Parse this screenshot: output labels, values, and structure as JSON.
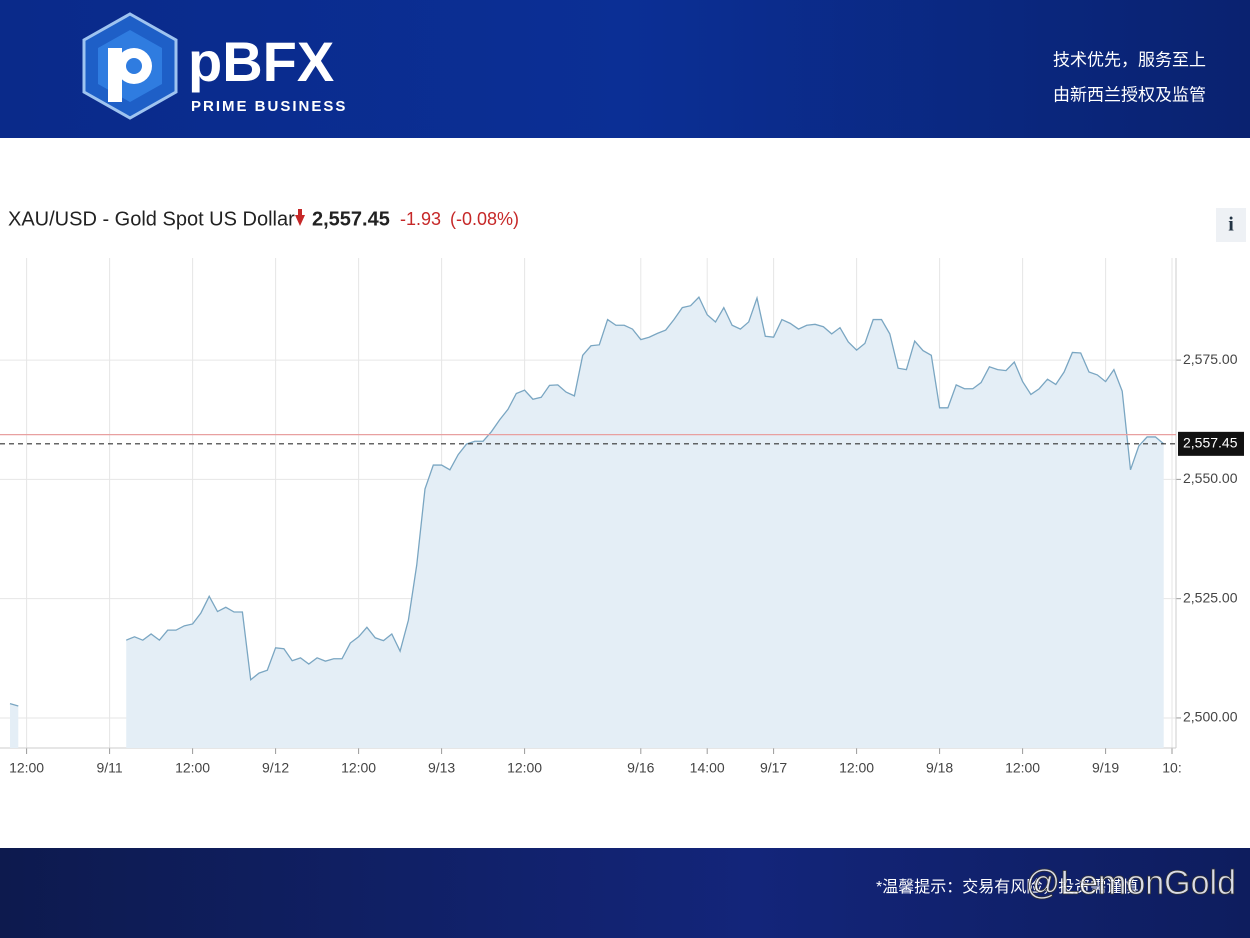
{
  "header": {
    "brand": "pBFX",
    "brand_sub": "PRIME BUSINESS",
    "slogan_1": "技术优先，服务至上",
    "slogan_2": "由新西兰授权及监管"
  },
  "footer": {
    "note": "*温馨提示：交易有风险，投资需谨慎",
    "watermark": "@LemonGold"
  },
  "info_button": "i",
  "chart_data": {
    "type": "line",
    "title": "XAU/USD - Gold Spot US Dollar",
    "last_price": {
      "value": 2557.45,
      "label": "2,557.45"
    },
    "change": "-1.93",
    "change_percent": "(-0.08%)",
    "previous_close": 2559.38,
    "color": "#7aa6c2",
    "fill_color": "#e4eef6",
    "categories": [
      null,
      null,
      "12:00",
      null,
      null,
      null,
      null,
      null,
      null,
      null,
      null,
      null,
      "9/11",
      null,
      null,
      null,
      null,
      null,
      null,
      null,
      null,
      null,
      "12:00",
      null,
      null,
      null,
      null,
      null,
      null,
      null,
      null,
      null,
      "9/12",
      null,
      null,
      null,
      null,
      null,
      null,
      null,
      null,
      null,
      "12:00",
      null,
      null,
      null,
      null,
      null,
      null,
      null,
      null,
      null,
      "9/13",
      null,
      null,
      null,
      null,
      null,
      null,
      null,
      null,
      null,
      "12:00",
      null,
      null,
      null,
      null,
      null,
      null,
      null,
      null,
      null,
      null,
      null,
      null,
      null,
      "9/16",
      null,
      null,
      null,
      null,
      null,
      null,
      null,
      "14:00",
      null,
      null,
      null,
      null,
      null,
      null,
      null,
      "9/17",
      null,
      null,
      null,
      null,
      null,
      null,
      null,
      null,
      null,
      "12:00",
      null,
      null,
      null,
      null,
      null,
      null,
      null,
      null,
      null,
      "9/18",
      null,
      null,
      null,
      null,
      null,
      null,
      null,
      null,
      null,
      "12:00",
      null,
      null,
      null,
      null,
      null,
      null,
      null,
      null,
      null,
      "9/19",
      null,
      null,
      null,
      null,
      null,
      null,
      null,
      "10:"
    ],
    "values": [
      2503,
      2502.5,
      null,
      null,
      null,
      null,
      null,
      null,
      null,
      null,
      null,
      null,
      null,
      null,
      2516.3,
      2517,
      2516.3,
      2517.6,
      2516.3,
      2518.4,
      2518.4,
      2519.3,
      2519.7,
      2522,
      2525.5,
      2522.3,
      2523.2,
      2522.2,
      2522.2,
      2508,
      2509.4,
      2510,
      2514.7,
      2514.5,
      2512,
      2512.6,
      2511.3,
      2512.6,
      2511.9,
      2512.4,
      2512.4,
      2515.7,
      2517,
      2519,
      2516.8,
      2516.2,
      2517.6,
      2514,
      2520.5,
      2532,
      2548,
      2553,
      2553,
      2552,
      2555.2,
      2557.4,
      2558,
      2558,
      2560,
      2562.5,
      2564.7,
      2568,
      2568.7,
      2566.8,
      2567.2,
      2569.7,
      2569.8,
      2568.3,
      2567.5,
      2576,
      2578,
      2578.2,
      2583.5,
      2582.3,
      2582.3,
      2581.5,
      2579.3,
      2579.8,
      2580.6,
      2581.3,
      2583.5,
      2586,
      2586.4,
      2588.2,
      2584.5,
      2583,
      2586,
      2582.3,
      2581.5,
      2583,
      2588,
      2580,
      2579.8,
      2583.5,
      2582.7,
      2581.5,
      2582.3,
      2582.5,
      2582,
      2580.5,
      2581.8,
      2578.8,
      2577.1,
      2578.5,
      2583.5,
      2583.5,
      2580.5,
      2573.3,
      2573,
      2579,
      2577,
      2576,
      2565,
      2565,
      2569.8,
      2569,
      2569,
      2570.3,
      2573.6,
      2573,
      2572.8,
      2574.6,
      2570.5,
      2567.8,
      2569,
      2571,
      2569.9,
      2572.5,
      2576.6,
      2576.5,
      2572.5,
      2571.9,
      2570.5,
      2573,
      2568.5,
      2552,
      2557,
      2558.9,
      2558.9,
      2557.45,
      null
    ],
    "ylim": [
      2493.7,
      2596.4
    ],
    "yticks": [
      {
        "value": 2500,
        "label": "2,500.00"
      },
      {
        "value": 2525,
        "label": "2,525.00"
      },
      {
        "value": 2550,
        "label": "2,550.00"
      },
      {
        "value": 2575,
        "label": "2,575.00"
      }
    ],
    "grid": true
  }
}
